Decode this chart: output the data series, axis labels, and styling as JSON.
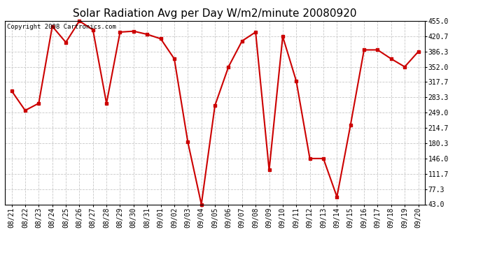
{
  "title": "Solar Radiation Avg per Day W/m2/minute 20080920",
  "copyright_text": "Copyright 2008 Cartronics.com",
  "x_labels": [
    "08/21",
    "08/22",
    "08/23",
    "08/24",
    "08/25",
    "08/26",
    "08/27",
    "08/28",
    "08/29",
    "08/30",
    "08/31",
    "09/01",
    "09/02",
    "09/03",
    "09/04",
    "09/05",
    "09/06",
    "09/07",
    "09/08",
    "09/09",
    "09/10",
    "09/11",
    "09/12",
    "09/13",
    "09/14",
    "09/15",
    "09/16",
    "09/17",
    "09/18",
    "09/19",
    "09/20"
  ],
  "y_values": [
    298.0,
    254.0,
    270.0,
    443.0,
    407.0,
    455.0,
    435.0,
    270.0,
    430.0,
    432.0,
    425.0,
    415.0,
    370.0,
    183.0,
    43.0,
    265.0,
    352.0,
    410.0,
    430.0,
    120.0,
    420.0,
    320.0,
    146.0,
    146.0,
    60.0,
    221.0,
    390.0,
    390.0,
    370.0,
    352.0,
    386.0
  ],
  "line_color": "#cc0000",
  "marker": "s",
  "marker_size": 2.5,
  "line_width": 1.5,
  "y_min": 43.0,
  "y_max": 455.0,
  "y_ticks": [
    43.0,
    77.3,
    111.7,
    146.0,
    180.3,
    214.7,
    249.0,
    283.3,
    317.7,
    352.0,
    386.3,
    420.7,
    455.0
  ],
  "bg_color": "#ffffff",
  "plot_bg_color": "#ffffff",
  "grid_color": "#c8c8c8",
  "title_fontsize": 11,
  "copyright_fontsize": 6.5,
  "tick_fontsize": 7,
  "fig_width": 6.9,
  "fig_height": 3.75,
  "dpi": 100
}
